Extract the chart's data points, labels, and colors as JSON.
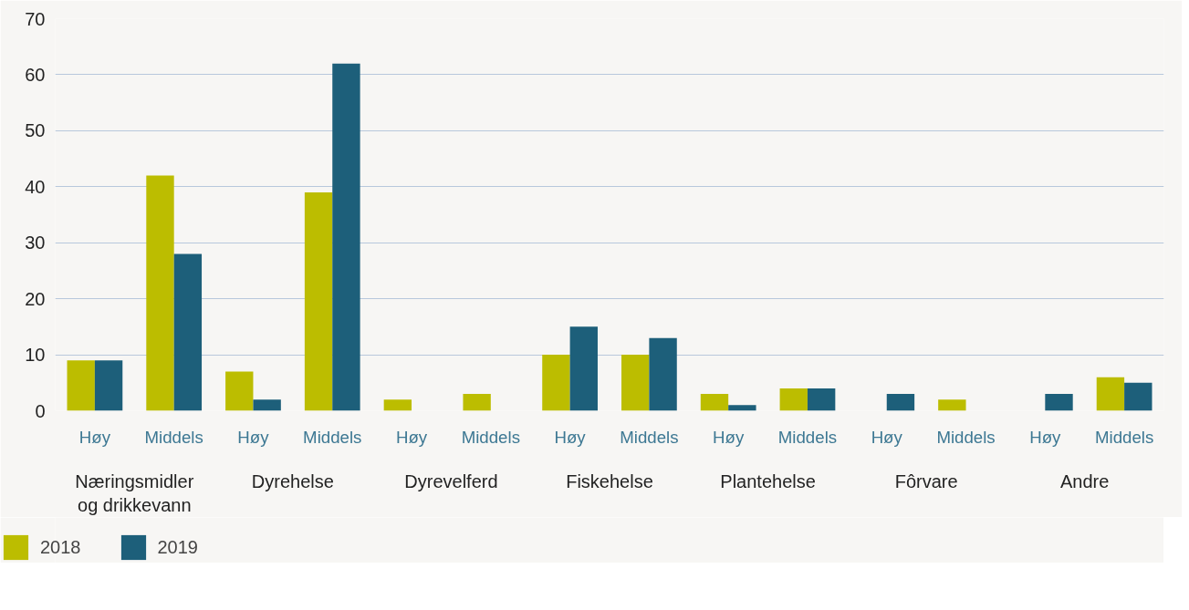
{
  "chart_data": {
    "type": "bar",
    "categories": [
      "Høy",
      "Middels",
      "Høy",
      "Middels",
      "Høy",
      "Middels",
      "Høy",
      "Middels",
      "Høy",
      "Middels",
      "Høy",
      "Middels",
      "Høy",
      "Middels"
    ],
    "series": [
      {
        "name": "2018",
        "color": "#bcbd00",
        "values": [
          9,
          42,
          7,
          39,
          2,
          3,
          10,
          10,
          3,
          4,
          0,
          2,
          0,
          6
        ]
      },
      {
        "name": "2019",
        "color": "#1d5f7a",
        "values": [
          9,
          28,
          2,
          62,
          0,
          0,
          15,
          13,
          1,
          4,
          3,
          0,
          3,
          5
        ]
      }
    ],
    "annotations": [
      "Næringsmidler og drikkevann",
      "Dyrehelse",
      "Dyrevelferd",
      "Fiskehelse",
      "Plantehelse",
      "Fôrvare",
      "Andre"
    ],
    "ylim": [
      0,
      70
    ],
    "yticks": [
      0,
      10,
      20,
      30,
      40,
      50,
      60,
      70
    ],
    "grid": "y",
    "legend": "bottom left"
  }
}
